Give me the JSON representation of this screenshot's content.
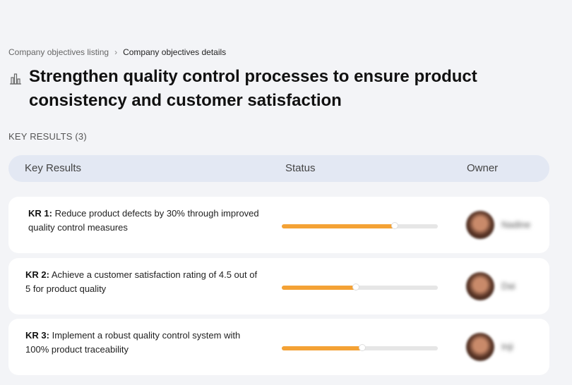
{
  "breadcrumb": {
    "items": [
      "Company objectives listing",
      "Company objectives details"
    ]
  },
  "header": {
    "title": "Strengthen quality control processes to ensure product consistency and customer satisfaction"
  },
  "section": {
    "label": "KEY RESULTS (3)"
  },
  "table": {
    "columns": [
      "Key Results",
      "Status",
      "Owner"
    ],
    "rows": [
      {
        "label": "KR 1:",
        "text": "Reduce product defects by 30% through improved quality control measures",
        "status": 73,
        "owner": "Nadine"
      },
      {
        "label": "KR 2:",
        "text": "Achieve a customer satisfaction rating of 4.5 out of 5 for product quality",
        "status": 48,
        "owner": "Dai"
      },
      {
        "label": "KR 3:",
        "text": "Implement a robust quality control system with 100% product traceability",
        "status": 52,
        "owner": "Inji"
      }
    ]
  }
}
